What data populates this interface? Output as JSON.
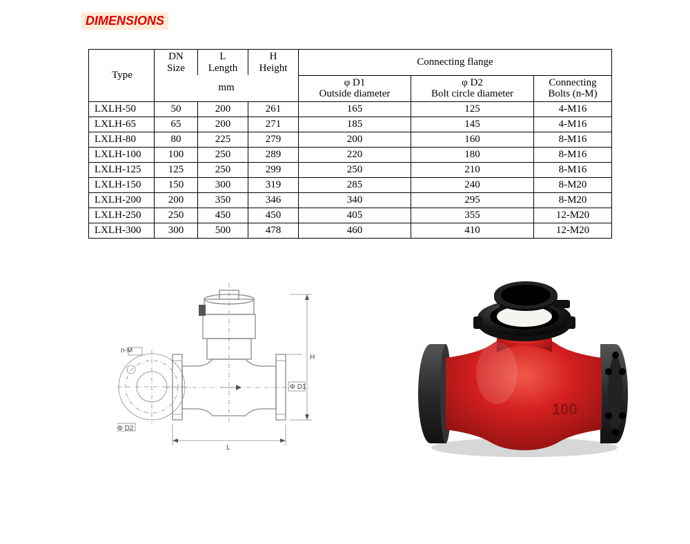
{
  "title": "DIMENSIONS",
  "table": {
    "header": {
      "type": "Type",
      "dn_top": "DN",
      "dn_bot": "Size",
      "l_top": "L",
      "l_bot": "Length",
      "h_top": "H",
      "h_bot": "Height",
      "mm": "mm",
      "flange": "Connecting flange",
      "d1_top": "φ  D1",
      "d1_bot": "Outside diameter",
      "d2_top": "φ  D2",
      "d2_bot": "Bolt circle diameter",
      "bolt_top": "Connecting",
      "bolt_bot": "Bolts (n-M)"
    },
    "rows": [
      {
        "type": "LXLH-50",
        "dn": "50",
        "l": "200",
        "h": "261",
        "d1": "165",
        "d2": "125",
        "bolt": "4-M16"
      },
      {
        "type": "LXLH-65",
        "dn": "65",
        "l": "200",
        "h": "271",
        "d1": "185",
        "d2": "145",
        "bolt": "4-M16"
      },
      {
        "type": "LXLH-80",
        "dn": "80",
        "l": "225",
        "h": "279",
        "d1": "200",
        "d2": "160",
        "bolt": "8-M16"
      },
      {
        "type": "LXLH-100",
        "dn": "100",
        "l": "250",
        "h": "289",
        "d1": "220",
        "d2": "180",
        "bolt": "8-M16"
      },
      {
        "type": "LXLH-125",
        "dn": "125",
        "l": "250",
        "h": "299",
        "d1": "250",
        "d2": "210",
        "bolt": "8-M16"
      },
      {
        "type": "LXLH-150",
        "dn": "150",
        "l": "300",
        "h": "319",
        "d1": "285",
        "d2": "240",
        "bolt": "8-M20"
      },
      {
        "type": "LXLH-200",
        "dn": "200",
        "l": "350",
        "h": "346",
        "d1": "340",
        "d2": "295",
        "bolt": "8-M20"
      },
      {
        "type": "LXLH-250",
        "dn": "250",
        "l": "450",
        "h": "450",
        "d1": "405",
        "d2": "355",
        "bolt": "12-M20"
      },
      {
        "type": "LXLH-300",
        "dn": "300",
        "l": "500",
        "h": "478",
        "d1": "460",
        "d2": "410",
        "bolt": "12-M20"
      }
    ]
  },
  "drawing": {
    "labels": {
      "nm": "n-M",
      "d2": "Φ D2",
      "d1": "Φ D1",
      "h": "H",
      "l": "L"
    },
    "colors": {
      "line": "#888888",
      "text": "#444444",
      "meter_dark": "#555555"
    }
  },
  "photo": {
    "colors": {
      "body": "#d41f1f",
      "body_shadow": "#8f1212",
      "body_highlight": "#f05a4a",
      "flange": "#2a2a2a",
      "flange_light": "#555555",
      "cap": "#1a1a1a",
      "cap_mid": "#333333",
      "dial_face": "#f4f4f0",
      "shadow": "#bdbdbd"
    },
    "marking": "100"
  }
}
